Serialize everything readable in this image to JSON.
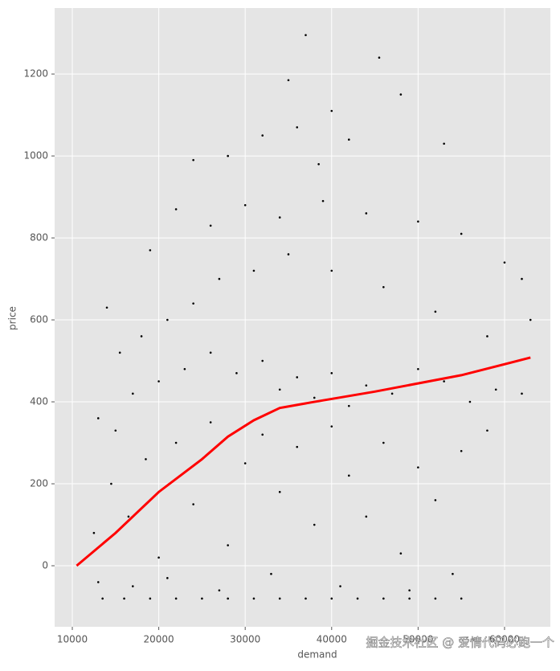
{
  "chart_data": {
    "type": "scatter",
    "xlabel": "demand",
    "ylabel": "price",
    "annotation": "掘金技术社区 @ 爱情代码必跑一个",
    "xlim": [
      7955,
      65300
    ],
    "ylim": [
      -149,
      1361
    ],
    "xticks": [
      10000,
      20000,
      30000,
      40000,
      50000,
      60000
    ],
    "yticks": [
      0,
      200,
      400,
      600,
      800,
      1000,
      1200
    ],
    "grid": true,
    "background": "#e5e5e5",
    "series": [
      {
        "type": "scatter",
        "color": "#000000",
        "x": [
          13500,
          16000,
          19000,
          22000,
          25000,
          28000,
          31000,
          34000,
          37000,
          40000,
          43000,
          46000,
          49000,
          52000,
          55000,
          37000,
          45500,
          35000,
          48000,
          40000,
          36000,
          42000,
          32000,
          53000,
          28000,
          24000,
          38500,
          19000,
          22000,
          26000,
          30000,
          34000,
          39000,
          44000,
          50000,
          55000,
          60000,
          62000,
          14000,
          15500,
          18000,
          21000,
          24000,
          27000,
          31000,
          35000,
          40000,
          46000,
          52000,
          58000,
          63000,
          13000,
          15000,
          17000,
          20000,
          23000,
          26000,
          29000,
          32000,
          34000,
          36000,
          38000,
          40000,
          42000,
          44000,
          47000,
          50000,
          53000,
          56000,
          59000,
          62000,
          12500,
          14500,
          16500,
          18500,
          20000,
          22000,
          24000,
          26000,
          28000,
          30000,
          32000,
          34000,
          36000,
          38000,
          40000,
          42000,
          44000,
          46000,
          48000,
          50000,
          52000,
          55000,
          58000,
          13000,
          17000,
          21000,
          27000,
          33000,
          41000,
          49000,
          54000
        ],
        "values": [
          -80,
          -80,
          -80,
          -80,
          -80,
          -80,
          -80,
          -80,
          -80,
          -80,
          -80,
          -80,
          -80,
          -80,
          -80,
          1295,
          1240,
          1185,
          1150,
          1110,
          1070,
          1040,
          1050,
          1030,
          1000,
          990,
          980,
          770,
          870,
          830,
          880,
          850,
          890,
          860,
          840,
          810,
          740,
          700,
          630,
          520,
          560,
          600,
          640,
          700,
          720,
          760,
          720,
          680,
          620,
          560,
          600,
          360,
          330,
          420,
          450,
          480,
          520,
          470,
          500,
          430,
          460,
          410,
          470,
          390,
          440,
          420,
          480,
          450,
          400,
          430,
          420,
          80,
          200,
          120,
          260,
          20,
          300,
          150,
          350,
          50,
          250,
          320,
          180,
          290,
          100,
          340,
          220,
          120,
          300,
          30,
          240,
          160,
          280,
          330,
          -40,
          -50,
          -30,
          -60,
          -20,
          -50,
          -60,
          -20
        ]
      },
      {
        "type": "line",
        "color": "#ff0000",
        "x": [
          10500,
          15000,
          20000,
          25000,
          28000,
          31000,
          34000,
          38000,
          45000,
          55000,
          63000
        ],
        "values": [
          0,
          80,
          180,
          260,
          315,
          355,
          385,
          400,
          425,
          465,
          508
        ]
      }
    ]
  }
}
